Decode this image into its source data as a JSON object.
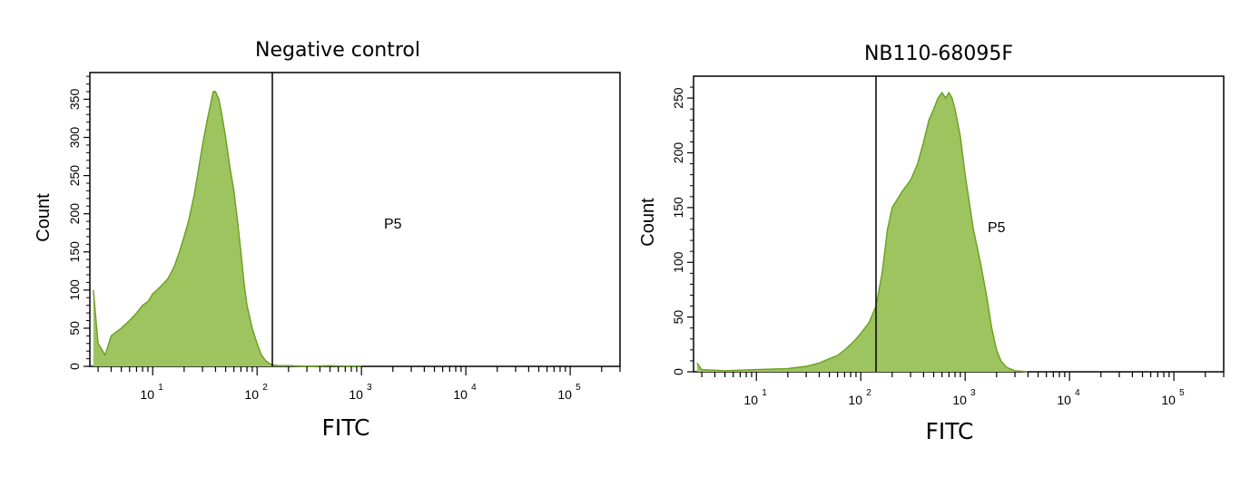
{
  "chart_data": [
    {
      "type": "area",
      "title": "Negative control",
      "xlabel": "FITC",
      "ylabel": "Count",
      "x_scale": "log",
      "xlim": [
        2.5,
        300000
      ],
      "ylim": [
        0,
        385
      ],
      "x_ticks": [
        {
          "base": "10",
          "exp": "1"
        },
        {
          "base": "10",
          "exp": "2"
        },
        {
          "base": "10",
          "exp": "3"
        },
        {
          "base": "10",
          "exp": "4"
        },
        {
          "base": "10",
          "exp": "5"
        }
      ],
      "y_ticks": [
        "0",
        "50",
        "100",
        "150",
        "200",
        "250",
        "300",
        "350"
      ],
      "y_tick_values": [
        0,
        50,
        100,
        150,
        200,
        250,
        300,
        350
      ],
      "gate": {
        "label": "P5",
        "threshold": 140
      },
      "series": [
        {
          "color": "#9dc45f",
          "line_color": "#6b9e1f",
          "x": [
            2.7,
            3,
            3.5,
            4,
            5,
            6,
            7,
            8,
            9,
            10,
            12,
            14,
            16,
            18,
            20,
            22,
            25,
            28,
            30,
            33,
            36,
            38,
            40,
            43,
            46,
            50,
            55,
            60,
            65,
            70,
            75,
            80,
            90,
            100,
            110,
            120,
            130,
            140,
            160,
            200,
            300,
            500,
            800,
            1000
          ],
          "values": [
            100,
            30,
            15,
            40,
            50,
            60,
            70,
            80,
            85,
            95,
            105,
            115,
            130,
            150,
            170,
            190,
            225,
            265,
            290,
            320,
            345,
            360,
            360,
            350,
            330,
            300,
            260,
            230,
            190,
            150,
            110,
            80,
            50,
            30,
            15,
            8,
            4,
            2,
            1,
            1,
            0,
            1,
            0,
            0
          ]
        }
      ]
    },
    {
      "type": "area",
      "title": "NB110-68095F",
      "xlabel": "FITC",
      "ylabel": "Count",
      "x_scale": "log",
      "xlim": [
        2.5,
        300000
      ],
      "ylim": [
        0,
        270
      ],
      "x_ticks": [
        {
          "base": "10",
          "exp": "1"
        },
        {
          "base": "10",
          "exp": "2"
        },
        {
          "base": "10",
          "exp": "3"
        },
        {
          "base": "10",
          "exp": "4"
        },
        {
          "base": "10",
          "exp": "5"
        }
      ],
      "y_ticks": [
        "0",
        "50",
        "100",
        "150",
        "200",
        "250"
      ],
      "y_tick_values": [
        0,
        50,
        100,
        150,
        200,
        250
      ],
      "gate": {
        "label": "P5",
        "threshold": 140
      },
      "series": [
        {
          "color": "#9dc45f",
          "line_color": "#6b9e1f",
          "x": [
            2.7,
            3,
            5,
            10,
            20,
            30,
            40,
            50,
            60,
            70,
            80,
            90,
            100,
            120,
            140,
            160,
            180,
            200,
            250,
            300,
            350,
            400,
            450,
            500,
            550,
            600,
            650,
            700,
            750,
            800,
            900,
            1000,
            1200,
            1400,
            1600,
            1800,
            2000,
            2200,
            2500,
            3000,
            4000
          ],
          "values": [
            8,
            2,
            1,
            2,
            3,
            5,
            8,
            12,
            15,
            20,
            25,
            30,
            35,
            45,
            60,
            90,
            130,
            150,
            165,
            175,
            190,
            210,
            230,
            240,
            250,
            255,
            250,
            255,
            250,
            240,
            215,
            180,
            130,
            100,
            70,
            40,
            20,
            10,
            4,
            1,
            0
          ]
        }
      ]
    }
  ]
}
